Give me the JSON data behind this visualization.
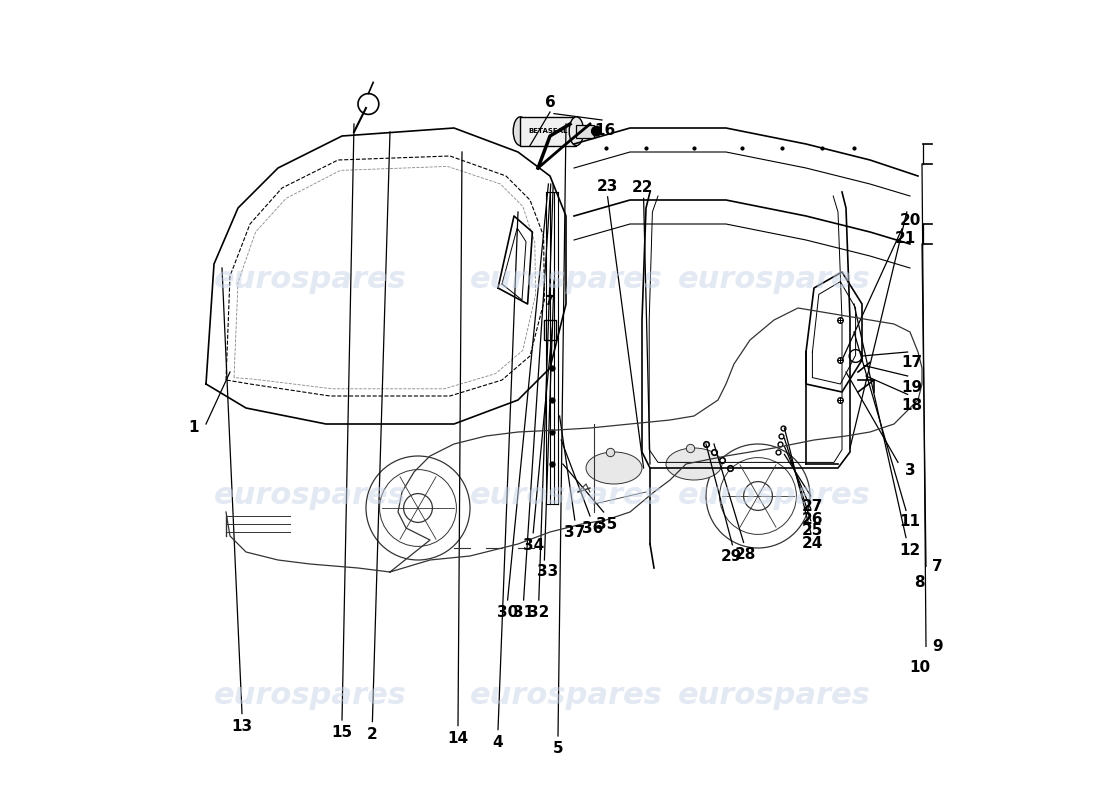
{
  "title": "",
  "background_color": "#ffffff",
  "watermark_text": "eurospares",
  "watermark_color": "#c8d4e8",
  "label_fontsize": 11,
  "label_color": "#000000",
  "line_color": "#000000",
  "car_line_color": "#333333"
}
